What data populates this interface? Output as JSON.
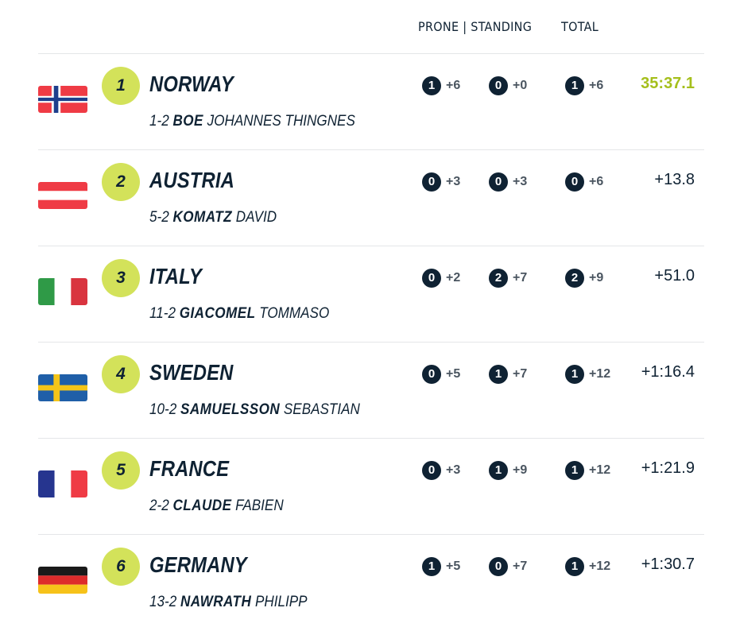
{
  "header": {
    "shooting_label": "PRONE | STANDING",
    "total_label": "TOTAL"
  },
  "rows": [
    {
      "rank": "1",
      "country": "NORWAY",
      "flag": "norway-flag-icon",
      "bib": "1-2",
      "last": "BOE",
      "first": "JOHANNES THINGNES",
      "prone_miss": "1",
      "prone_pen": "+6",
      "stand_miss": "0",
      "stand_pen": "+0",
      "total_miss": "1",
      "total_pen": "+6",
      "time": "35:37.1"
    },
    {
      "rank": "2",
      "country": "AUSTRIA",
      "flag": "austria-flag-icon",
      "bib": "5-2",
      "last": "KOMATZ",
      "first": "DAVID",
      "prone_miss": "0",
      "prone_pen": "+3",
      "stand_miss": "0",
      "stand_pen": "+3",
      "total_miss": "0",
      "total_pen": "+6",
      "time": "+13.8"
    },
    {
      "rank": "3",
      "country": "ITALY",
      "flag": "italy-flag-icon",
      "bib": "11-2",
      "last": "GIACOMEL",
      "first": "TOMMASO",
      "prone_miss": "0",
      "prone_pen": "+2",
      "stand_miss": "2",
      "stand_pen": "+7",
      "total_miss": "2",
      "total_pen": "+9",
      "time": "+51.0"
    },
    {
      "rank": "4",
      "country": "SWEDEN",
      "flag": "sweden-flag-icon",
      "bib": "10-2",
      "last": "SAMUELSSON",
      "first": "SEBASTIAN",
      "prone_miss": "0",
      "prone_pen": "+5",
      "stand_miss": "1",
      "stand_pen": "+7",
      "total_miss": "1",
      "total_pen": "+12",
      "time": "+1:16.4"
    },
    {
      "rank": "5",
      "country": "FRANCE",
      "flag": "france-flag-icon",
      "bib": "2-2",
      "last": "CLAUDE",
      "first": "FABIEN",
      "prone_miss": "0",
      "prone_pen": "+3",
      "stand_miss": "1",
      "stand_pen": "+9",
      "total_miss": "1",
      "total_pen": "+12",
      "time": "+1:21.9"
    },
    {
      "rank": "6",
      "country": "GERMANY",
      "flag": "germany-flag-icon",
      "bib": "13-2",
      "last": "NAWRATH",
      "first": "PHILIPP",
      "prone_miss": "1",
      "prone_pen": "+5",
      "stand_miss": "0",
      "stand_pen": "+7",
      "total_miss": "1",
      "total_pen": "+12",
      "time": "+1:30.7"
    }
  ],
  "colors": {
    "accent": "#d3e25a",
    "leader_time": "#a5bf1c",
    "badge": "#0f2233"
  }
}
